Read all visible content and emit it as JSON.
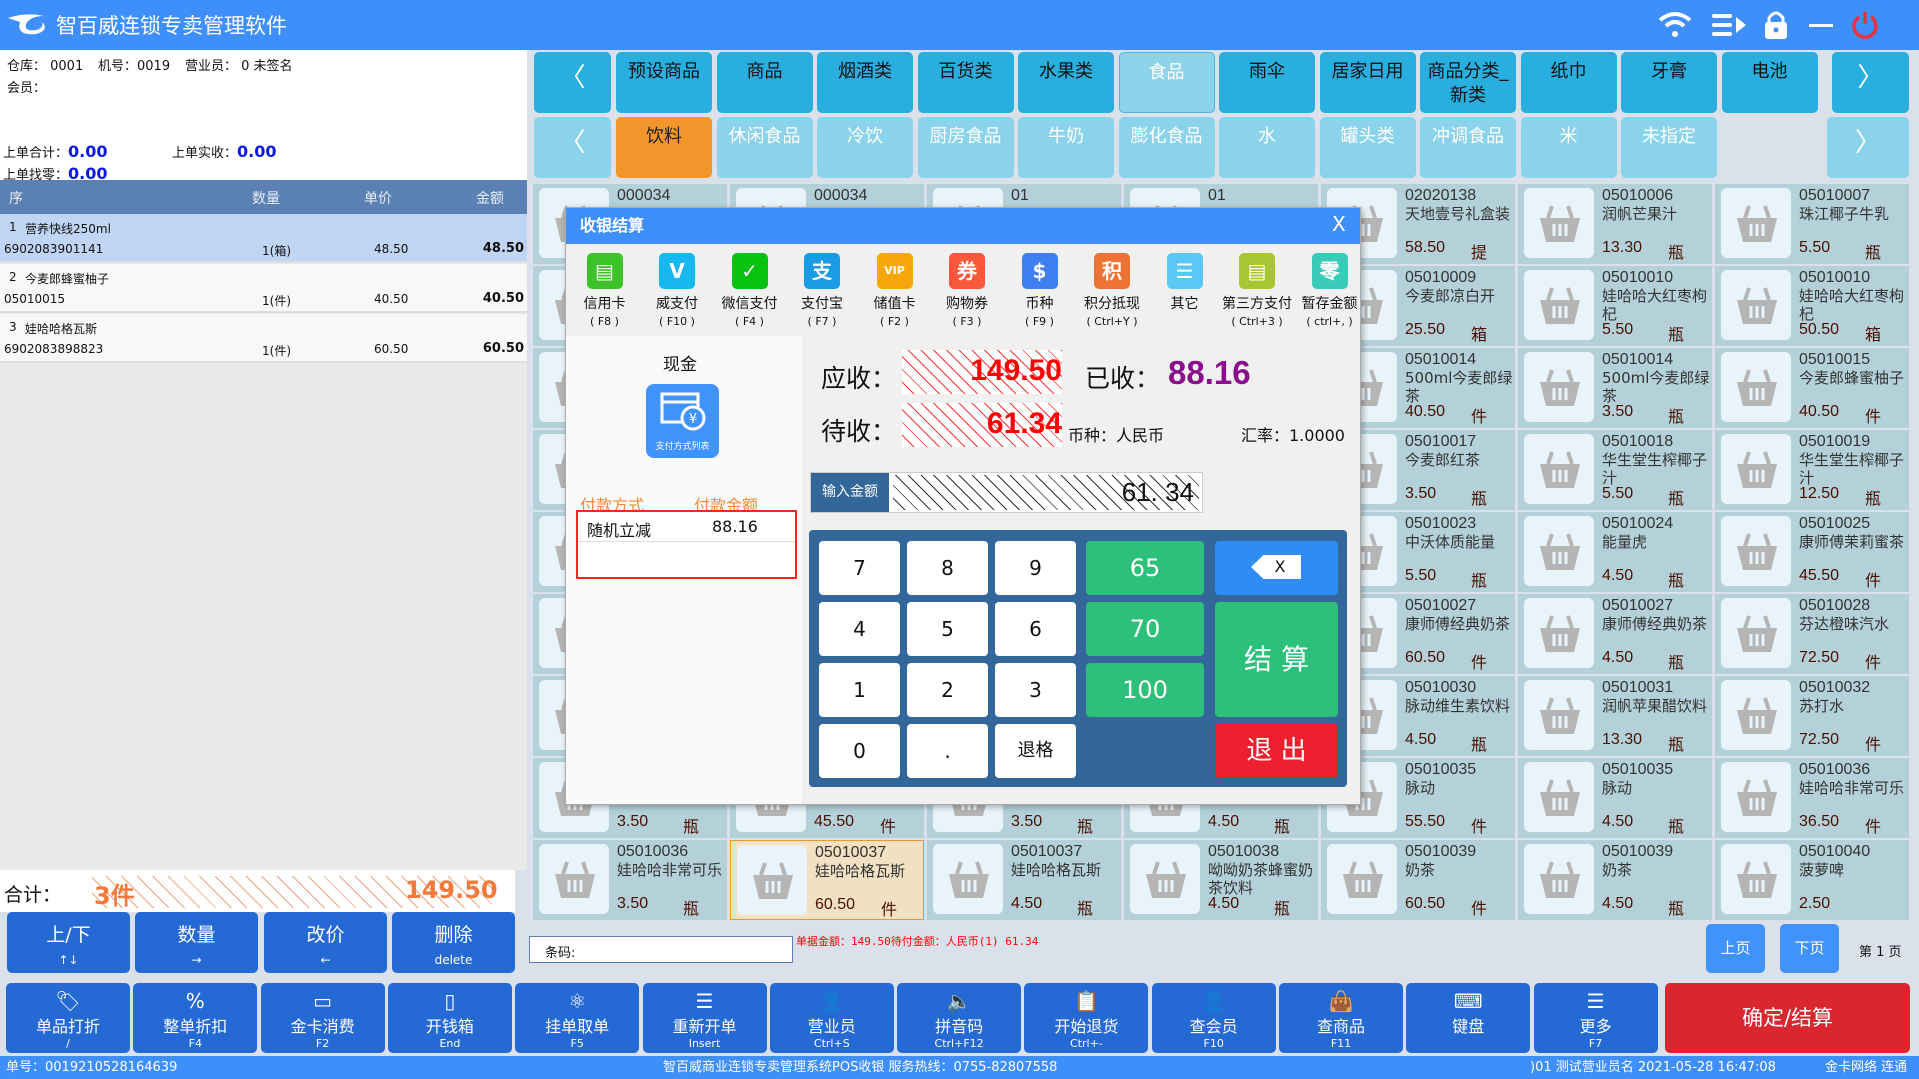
{
  "app": {
    "title": "智百威连锁专卖管理软件"
  },
  "titlebar_icons": [
    "wifi-icon",
    "switch-icon",
    "lock-icon",
    "minimize-icon",
    "power-icon"
  ],
  "colors": {
    "titlebar": "#3f8ffb",
    "accent_orange": "#f0962a",
    "toolbar_button": "#2569d4",
    "confirm_red": "#d9262f",
    "card": "#b4d1da"
  },
  "info": {
    "warehouse": "仓库： 0001",
    "machine": "机号：0019",
    "clerk": "营业员： 0 未签名",
    "member": "会员：",
    "last_total_label": "上单合计：",
    "last_total": "0.00",
    "last_paid_label": "上单实收：",
    "last_paid": "0.00",
    "last_change_label": "上单找零：",
    "last_change": "0.00"
  },
  "table": {
    "headers": [
      "序",
      "数量",
      "单价",
      "金额"
    ],
    "rows": [
      {
        "no": "1",
        "name": "营养快线250ml",
        "code": "6902083901141",
        "qty": "1(箱)",
        "price": "48.50",
        "amount": "48.50",
        "selected": true
      },
      {
        "no": "2",
        "name": "今麦郎蜂蜜柚子",
        "code": "05010015",
        "qty": "1(件)",
        "price": "40.50",
        "amount": "40.50"
      },
      {
        "no": "3",
        "name": "娃哈哈格瓦斯",
        "code": "6902083898823",
        "qty": "1(件)",
        "price": "60.50",
        "amount": "60.50"
      }
    ]
  },
  "total": {
    "label": "合计：",
    "count": "3件",
    "amount": "149.50"
  },
  "left_buttons": [
    {
      "label": "上/下",
      "key": "↑↓"
    },
    {
      "label": "数量",
      "key": "→"
    },
    {
      "label": "改价",
      "key": "←"
    },
    {
      "label": "删除",
      "key": "delete"
    }
  ],
  "categories": {
    "top": [
      "预设商品",
      "商品",
      "烟酒类",
      "百货类",
      "水果类",
      "食品",
      "雨伞",
      "居家日用",
      "商品分类_新类",
      "纸巾",
      "牙膏",
      "电池"
    ],
    "top_selected": "食品",
    "sub": [
      "饮料",
      "休闲食品",
      "冷饮",
      "厨房食品",
      "牛奶",
      "膨化食品",
      "水",
      "罐头类",
      "冲调食品",
      "米",
      "未指定"
    ],
    "sub_selected": "饮料",
    "prev": "〈",
    "next": "〉"
  },
  "products": [
    [
      {
        "code": "000034"
      },
      {
        "code": "000034"
      },
      {
        "code": "01"
      },
      {
        "code": "01"
      },
      {
        "code": "02020138",
        "name": "天地壹号礼盒装",
        "price": "58.50",
        "unit": "提"
      },
      {
        "code": "05010006",
        "name": "润帆芒果汁",
        "price": "13.30",
        "unit": "瓶"
      },
      {
        "code": "05010007",
        "name": "珠江椰子牛乳",
        "price": "5.50",
        "unit": "瓶"
      }
    ],
    [
      {},
      {},
      {},
      {},
      {
        "code": "05010009",
        "name": "今麦郎凉白开",
        "price": "25.50",
        "unit": "箱"
      },
      {
        "code": "05010010",
        "name": "娃哈哈大红枣枸杞",
        "price": "5.50",
        "unit": "瓶"
      },
      {
        "code": "05010010",
        "name": "娃哈哈大红枣枸杞",
        "price": "50.50",
        "unit": "箱"
      }
    ],
    [
      {},
      {},
      {},
      {},
      {
        "code": "05010014",
        "name": "500ml今麦郎绿茶",
        "price": "40.50",
        "unit": "件"
      },
      {
        "code": "05010014",
        "name": "500ml今麦郎绿茶",
        "price": "3.50",
        "unit": "瓶"
      },
      {
        "code": "05010015",
        "name": "今麦郎蜂蜜柚子",
        "price": "40.50",
        "unit": "件"
      }
    ],
    [
      {},
      {},
      {},
      {},
      {
        "code": "05010017",
        "name": "今麦郎红茶",
        "price": "3.50",
        "unit": "瓶"
      },
      {
        "code": "05010018",
        "name": "华生堂生榨椰子汁",
        "price": "5.50",
        "unit": "瓶"
      },
      {
        "code": "05010019",
        "name": "华生堂生榨椰子汁",
        "price": "12.50",
        "unit": "瓶"
      }
    ],
    [
      {},
      {},
      {},
      {},
      {
        "code": "05010023",
        "name": "中沃体质能量",
        "price": "5.50",
        "unit": "瓶"
      },
      {
        "code": "05010024",
        "name": "能量虎",
        "price": "4.50",
        "unit": "瓶"
      },
      {
        "code": "05010025",
        "name": "康师傅茉莉蜜茶",
        "price": "45.50",
        "unit": "件"
      }
    ],
    [
      {},
      {},
      {},
      {},
      {
        "code": "05010027",
        "name": "康师傅经典奶茶",
        "price": "60.50",
        "unit": "件"
      },
      {
        "code": "05010027",
        "name": "康师傅经典奶茶",
        "price": "4.50",
        "unit": "瓶"
      },
      {
        "code": "05010028",
        "name": "芬达橙味汽水",
        "price": "72.50",
        "unit": "件"
      }
    ],
    [
      {},
      {},
      {},
      {},
      {
        "code": "05010030",
        "name": "脉动维生素饮料",
        "price": "4.50",
        "unit": "瓶"
      },
      {
        "code": "05010031",
        "name": "润帆苹果醋饮料",
        "price": "13.30",
        "unit": "瓶"
      },
      {
        "code": "05010032",
        "name": "苏打水",
        "price": "72.50",
        "unit": "件"
      }
    ],
    [
      {
        "price": "3.50",
        "unit": "瓶"
      },
      {
        "price": "45.50",
        "unit": "件"
      },
      {
        "price": "3.50",
        "unit": "瓶"
      },
      {
        "price": "4.50",
        "unit": "瓶"
      },
      {
        "code": "05010035",
        "name": "脉动",
        "price": "55.50",
        "unit": "件"
      },
      {
        "code": "05010035",
        "name": "脉动",
        "price": "4.50",
        "unit": "瓶"
      },
      {
        "code": "05010036",
        "name": "娃哈哈非常可乐",
        "price": "36.50",
        "unit": "件"
      }
    ],
    [
      {
        "code": "05010036",
        "name": "娃哈哈非常可乐",
        "price": "3.50",
        "unit": "瓶"
      },
      {
        "code": "05010037",
        "name": "娃哈哈格瓦斯",
        "price": "60.50",
        "unit": "件",
        "selected": true
      },
      {
        "code": "05010037",
        "name": "娃哈哈格瓦斯",
        "price": "4.50",
        "unit": "瓶"
      },
      {
        "code": "05010038",
        "name": "呦呦奶茶蜂蜜奶茶饮料",
        "price": "4.50",
        "unit": "瓶"
      },
      {
        "code": "05010039",
        "name": "奶茶",
        "price": "60.50",
        "unit": "件"
      },
      {
        "code": "05010039",
        "name": "奶茶",
        "price": "4.50",
        "unit": "瓶"
      },
      {
        "code": "05010040",
        "name": "菠萝啤",
        "price": "2.50"
      }
    ]
  ],
  "barcode": {
    "label": "条码:",
    "value": ""
  },
  "bill_info": "单据金额：149.50待付金额：人民币(1) 61.34",
  "paging": {
    "prev": "上页",
    "next": "下页",
    "page": "第 1 页"
  },
  "toolbar": [
    {
      "label": "单品打折",
      "key": "/",
      "icon": "tag-icon",
      "glyph": "🏷"
    },
    {
      "label": "整单折扣",
      "key": "F4",
      "icon": "percent-icon",
      "glyph": "%"
    },
    {
      "label": "金卡消费",
      "key": "F2",
      "icon": "card-icon",
      "glyph": "▭"
    },
    {
      "label": "开钱箱",
      "key": "End",
      "icon": "cash-drawer-icon",
      "glyph": "▯"
    },
    {
      "label": "挂单取单",
      "key": "F5",
      "icon": "atom-icon",
      "glyph": "⚛"
    },
    {
      "label": "重新开单",
      "key": "Insert",
      "icon": "reload-list-icon",
      "glyph": "☰"
    },
    {
      "label": "营业员",
      "key": "Ctrl+S",
      "icon": "clerk-icon",
      "glyph": "👤"
    },
    {
      "label": "拼音码",
      "key": "Ctrl+F12",
      "icon": "speaker-icon",
      "glyph": "🔈"
    },
    {
      "label": "开始退货",
      "key": "Ctrl+-",
      "icon": "clipboard-return-icon",
      "glyph": "📋"
    },
    {
      "label": "查会员",
      "key": "F10",
      "icon": "member-icon",
      "glyph": "👤"
    },
    {
      "label": "查商品",
      "key": "F11",
      "icon": "bag-icon",
      "glyph": "👜"
    },
    {
      "label": "键盘",
      "key": "",
      "icon": "keyboard-icon",
      "glyph": "⌨"
    },
    {
      "label": "更多",
      "key": "F7",
      "icon": "more-list-icon",
      "glyph": "☰"
    }
  ],
  "confirm": "确定/结算",
  "status": {
    "order": "单号：0019210528164639",
    "center": "智百威商业连锁专卖管理系统POS收银   服务热线：0755-82807558",
    "clerk_time": ")01 测试营业员名 2021-05-28 16:47:08",
    "network": "金卡网络 连通"
  },
  "dialog": {
    "title": "收银结算",
    "close": "X",
    "payments": [
      {
        "label": "信用卡",
        "key": "( F8 )",
        "color": "#3ec22a",
        "glyph": "▤",
        "icon": "credit-card-icon"
      },
      {
        "label": "威支付",
        "key": "( F10 )",
        "color": "#17b7ef",
        "glyph": "V",
        "icon": "wei-pay-icon"
      },
      {
        "label": "微信支付",
        "key": "( F4 )",
        "color": "#09c20f",
        "glyph": "✓",
        "icon": "wechat-pay-icon"
      },
      {
        "label": "支付宝",
        "key": "( F7 )",
        "color": "#1a9be6",
        "glyph": "支",
        "icon": "alipay-icon"
      },
      {
        "label": "储值卡",
        "key": "( F2 )",
        "color": "#f7a70b",
        "glyph": "VIP",
        "icon": "stored-value-card-icon"
      },
      {
        "label": "购物券",
        "key": "( F3 )",
        "color": "#f9593a",
        "glyph": "券",
        "icon": "coupon-icon"
      },
      {
        "label": "币种",
        "key": "( F9 )",
        "color": "#3f7ff0",
        "glyph": "$",
        "icon": "currency-icon"
      },
      {
        "label": "积分抵现",
        "key": "( Ctrl+Y )",
        "color": "#ed7334",
        "glyph": "积",
        "icon": "points-icon"
      },
      {
        "label": "其它",
        "key": "",
        "color": "#5ac8f5",
        "glyph": "☰",
        "icon": "other-icon"
      },
      {
        "label": "第三方支付",
        "key": "( Ctrl+3 )",
        "color": "#a9c531",
        "glyph": "▤",
        "icon": "third-party-pay-icon"
      },
      {
        "label": "暂存金额",
        "key": "( ctrl+, )",
        "color": "#37cbb8",
        "glyph": "零",
        "icon": "deposit-icon"
      }
    ],
    "cash": "现金",
    "pay_list": "支付方式列表",
    "pay_headers": [
      "付款方式",
      "付款金额"
    ],
    "pay_rows": [
      {
        "method": "随机立减",
        "amount": "88.16"
      }
    ],
    "receivable_label": "应收：",
    "receivable": "149.50",
    "received_label": "已收：",
    "received": "88.16",
    "pending_label": "待收：",
    "pending": "61.34",
    "currency": "币种：人民币",
    "rate": "汇率：1.0000",
    "input_label": "输入金额",
    "input_value": "61. 34",
    "keys": [
      "7",
      "8",
      "9",
      "4",
      "5",
      "6",
      "1",
      "2",
      "3",
      "0",
      ".",
      "退格"
    ],
    "quick": [
      "65",
      "70",
      "100"
    ],
    "backspace": "X",
    "settle": "结 算",
    "exit": "退 出"
  }
}
